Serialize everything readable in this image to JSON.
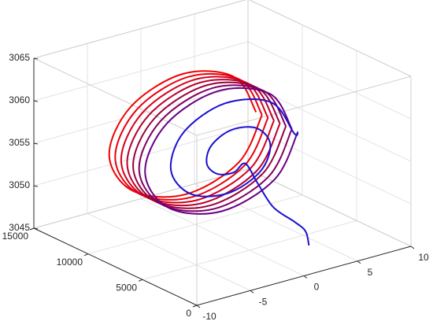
{
  "chart_data": {
    "type": "line3d",
    "xlim": [
      -10,
      10
    ],
    "ylim": [
      0,
      15000
    ],
    "zlim": [
      3045,
      3065
    ],
    "xticks": [
      -10,
      -5,
      0,
      5,
      10
    ],
    "yticks": [
      0,
      5000,
      10000,
      15000
    ],
    "zticks": [
      3045,
      3050,
      3055,
      3060,
      3065
    ],
    "grid": true,
    "box": true,
    "series": [
      {
        "color": "#f00000",
        "x": [
          7,
          4.9,
          0,
          -4.9,
          -7,
          -4.9,
          0,
          4.9,
          7
        ],
        "y": [
          11300,
          11230,
          11160,
          11090,
          11020,
          10950,
          10890,
          10820,
          10750
        ],
        "z": [
          3055,
          3059.9,
          3062,
          3059.9,
          3055,
          3050.1,
          3048,
          3050.1,
          3055
        ]
      },
      {
        "color": "#e8000e",
        "x": [
          7,
          4.9,
          0,
          -4.9,
          -7,
          -4.9,
          0,
          4.9,
          7
        ],
        "y": [
          10750,
          10680,
          10610,
          10540,
          10470,
          10400,
          10340,
          10270,
          10200
        ],
        "z": [
          3055,
          3059.9,
          3062,
          3059.9,
          3055,
          3050.1,
          3048,
          3050.1,
          3055
        ]
      },
      {
        "color": "#d4001c",
        "x": [
          7,
          4.9,
          0,
          -4.9,
          -7,
          -4.9,
          0,
          4.9,
          7
        ],
        "y": [
          10200,
          10130,
          10060,
          9990,
          9920,
          9850,
          9790,
          9720,
          9650
        ],
        "z": [
          3055,
          3059.9,
          3062,
          3059.9,
          3055,
          3050.1,
          3048,
          3050.1,
          3055
        ]
      },
      {
        "color": "#b8002e",
        "x": [
          7,
          4.9,
          0,
          -4.9,
          -7,
          -4.9,
          0,
          4.9,
          7
        ],
        "y": [
          9650,
          9580,
          9510,
          9440,
          9370,
          9300,
          9240,
          9170,
          9100
        ],
        "z": [
          3055,
          3059.9,
          3062,
          3059.9,
          3055,
          3050.1,
          3048,
          3050.1,
          3055
        ]
      },
      {
        "color": "#98003c",
        "x": [
          7,
          4.9,
          0,
          -4.9,
          -7,
          -4.9,
          0,
          4.9,
          7
        ],
        "y": [
          9100,
          9030,
          8960,
          8890,
          8820,
          8750,
          8690,
          8620,
          8550
        ],
        "z": [
          3055,
          3059.9,
          3062,
          3059.9,
          3055,
          3050.1,
          3048,
          3050.1,
          3055
        ]
      },
      {
        "color": "#800060",
        "x": [
          7,
          4.9,
          0,
          -4.9,
          -7,
          -4.9,
          0,
          4.9,
          7
        ],
        "y": [
          8550,
          8480,
          8410,
          8340,
          8270,
          8200,
          8140,
          8070,
          8000
        ],
        "z": [
          3055,
          3059.9,
          3062,
          3059.9,
          3055,
          3050.1,
          3048,
          3050.1,
          3055
        ]
      },
      {
        "color": "#680084",
        "x": [
          7,
          4.9,
          0,
          -4.9,
          -7,
          -4.9,
          0,
          4.9,
          7
        ],
        "y": [
          8000,
          7930,
          7860,
          7790,
          7720,
          7650,
          7590,
          7520,
          7450
        ],
        "z": [
          3055,
          3059.9,
          3062,
          3059.9,
          3055,
          3050.1,
          3048,
          3050.1,
          3055
        ]
      },
      {
        "color": "#1a10d0",
        "x": [
          7,
          6.6,
          4.42,
          0,
          -3.92,
          -5.2,
          -3.43,
          0,
          2.93,
          3.8,
          2.44,
          0,
          -1.94,
          -2.4,
          -1.45,
          0,
          0.95,
          1.5,
          2,
          3,
          3,
          2.5
        ],
        "y": [
          7450,
          7400,
          7330,
          7260,
          7190,
          7120,
          7050,
          6980,
          6910,
          6840,
          6770,
          6700,
          6630,
          6560,
          6490,
          6420,
          6350,
          5800,
          4800,
          3800,
          2800,
          2000
        ],
        "z": [
          3055,
          3055,
          3059.42,
          3060.9,
          3058.92,
          3055,
          3051.57,
          3050.5,
          3052.07,
          3055,
          3057.44,
          3058.1,
          3056.94,
          3055,
          3053.55,
          3053.3,
          3054.05,
          3052,
          3049.5,
          3048,
          3047.5,
          3046.5
        ]
      }
    ]
  }
}
